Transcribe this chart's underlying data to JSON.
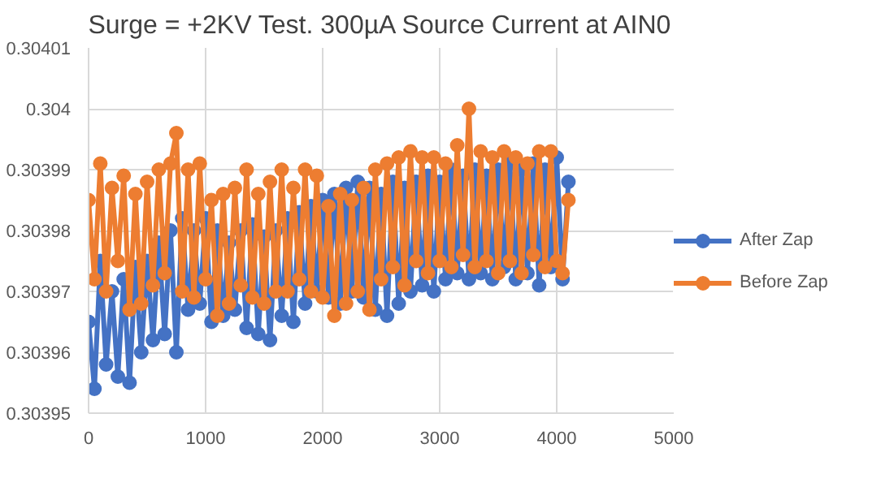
{
  "chart_data": {
    "type": "line",
    "title": "Surge = +2KV Test. 300µA Source Current at AIN0",
    "x": [
      0,
      50,
      100,
      150,
      200,
      250,
      300,
      350,
      400,
      450,
      500,
      550,
      600,
      650,
      700,
      750,
      800,
      850,
      900,
      950,
      1000,
      1050,
      1100,
      1150,
      1200,
      1250,
      1300,
      1350,
      1400,
      1450,
      1500,
      1550,
      1600,
      1650,
      1700,
      1750,
      1800,
      1850,
      1900,
      1950,
      2000,
      2050,
      2100,
      2150,
      2200,
      2250,
      2300,
      2350,
      2400,
      2450,
      2500,
      2550,
      2600,
      2650,
      2700,
      2750,
      2800,
      2850,
      2900,
      2950,
      3000,
      3050,
      3100,
      3150,
      3200,
      3250,
      3300,
      3350,
      3400,
      3450,
      3500,
      3550,
      3600,
      3650,
      3700,
      3750,
      3800,
      3850,
      3900,
      3950,
      4000,
      4050,
      4100
    ],
    "series": [
      {
        "name": "After Zap",
        "color": "#4472c4",
        "values": [
          0.303965,
          0.303954,
          0.303975,
          0.303958,
          0.30397,
          0.303956,
          0.303972,
          0.303955,
          0.303974,
          0.30396,
          0.303975,
          0.303962,
          0.303978,
          0.303963,
          0.30398,
          0.30396,
          0.303982,
          0.303967,
          0.30398,
          0.303968,
          0.303982,
          0.303965,
          0.30398,
          0.303966,
          0.303978,
          0.303967,
          0.30398,
          0.303964,
          0.303981,
          0.303963,
          0.303979,
          0.303962,
          0.30398,
          0.303966,
          0.303982,
          0.303965,
          0.303983,
          0.303968,
          0.303984,
          0.30397,
          0.303985,
          0.303969,
          0.303986,
          0.303968,
          0.303987,
          0.30397,
          0.303988,
          0.303969,
          0.303987,
          0.303967,
          0.303986,
          0.303966,
          0.303988,
          0.303968,
          0.303987,
          0.30397,
          0.303988,
          0.303971,
          0.303989,
          0.30397,
          0.303988,
          0.303972,
          0.30399,
          0.303973,
          0.303989,
          0.303972,
          0.30399,
          0.303973,
          0.303989,
          0.303972,
          0.30399,
          0.303974,
          0.303991,
          0.303972,
          0.30399,
          0.303973,
          0.303991,
          0.303971,
          0.30399,
          0.303974,
          0.303992,
          0.303972,
          0.303988
        ]
      },
      {
        "name": "Before Zap",
        "color": "#ed7d31",
        "values": [
          0.303985,
          0.303972,
          0.303991,
          0.30397,
          0.303987,
          0.303975,
          0.303989,
          0.303967,
          0.303986,
          0.303968,
          0.303988,
          0.303971,
          0.30399,
          0.303973,
          0.303991,
          0.303996,
          0.30397,
          0.30399,
          0.303969,
          0.303991,
          0.303972,
          0.303985,
          0.303966,
          0.303986,
          0.303968,
          0.303987,
          0.303971,
          0.30399,
          0.303969,
          0.303986,
          0.303968,
          0.303988,
          0.30397,
          0.30399,
          0.30397,
          0.303987,
          0.303972,
          0.30399,
          0.30397,
          0.303989,
          0.303969,
          0.303984,
          0.303966,
          0.303986,
          0.303968,
          0.303985,
          0.30397,
          0.303987,
          0.303967,
          0.30399,
          0.303972,
          0.303991,
          0.303974,
          0.303992,
          0.303971,
          0.303993,
          0.303975,
          0.303992,
          0.303973,
          0.303992,
          0.303975,
          0.303991,
          0.303974,
          0.303994,
          0.303976,
          0.304,
          0.303974,
          0.303993,
          0.303975,
          0.303992,
          0.303973,
          0.303993,
          0.303975,
          0.303992,
          0.303973,
          0.303991,
          0.303976,
          0.303993,
          0.303974,
          0.303993,
          0.303975,
          0.303973,
          0.303985
        ]
      }
    ],
    "xlim": [
      0,
      5000
    ],
    "xticks": [
      0,
      1000,
      2000,
      3000,
      4000,
      5000
    ],
    "ylim": [
      0.30395,
      0.30401
    ],
    "yticks": [
      0.30395,
      0.30396,
      0.30397,
      0.30398,
      0.30399,
      0.304,
      0.30401
    ],
    "grid": true,
    "legend": "right",
    "marker": "circle",
    "line_style": "solid"
  }
}
